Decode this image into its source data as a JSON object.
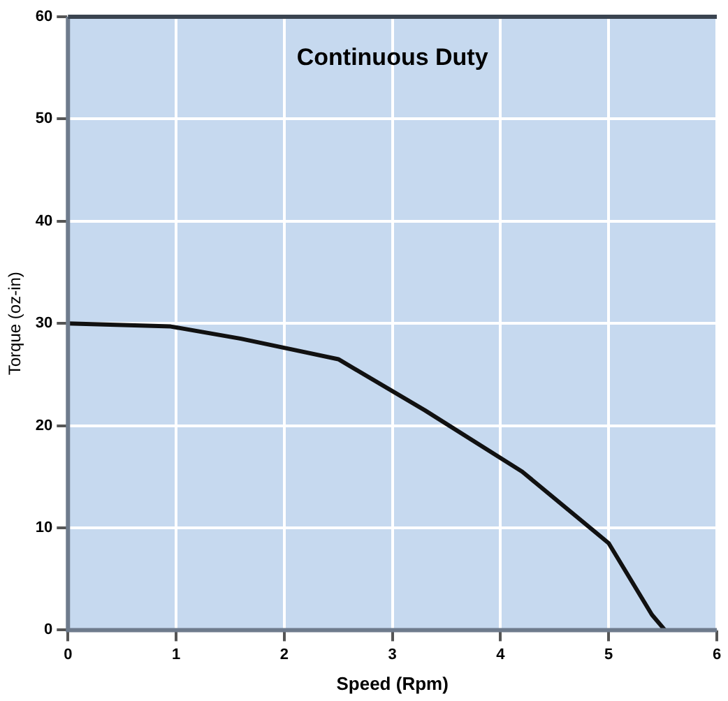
{
  "chart_data": {
    "type": "line",
    "title": "Continuous Duty",
    "xlabel": "Speed (Rpm)",
    "ylabel": "Torque (oz-in)",
    "x": [
      0,
      0.95,
      1.6,
      2.5,
      3.3,
      4.2,
      5.0,
      5.4,
      5.52
    ],
    "series": [
      {
        "color": "#111111",
        "values": [
          30,
          29.7,
          28.5,
          26.5,
          21.5,
          15.5,
          8.5,
          1.5,
          0
        ]
      }
    ],
    "xlim": [
      0,
      6
    ],
    "xticks": [
      0,
      1,
      2,
      3,
      4,
      5,
      6
    ],
    "ylim": [
      0,
      60
    ],
    "yticks": [
      0,
      10,
      20,
      30,
      40,
      50,
      60
    ],
    "grid": true,
    "legend": false,
    "marker": "none",
    "line_style": "solid"
  }
}
